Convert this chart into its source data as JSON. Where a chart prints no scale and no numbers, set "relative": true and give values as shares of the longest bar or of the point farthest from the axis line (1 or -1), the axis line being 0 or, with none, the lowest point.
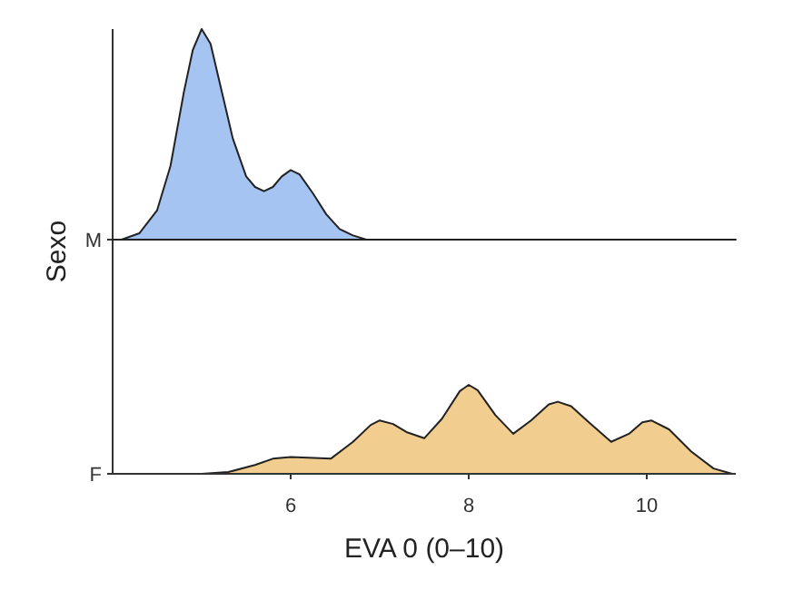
{
  "chart_data": [
    {
      "type": "area",
      "relative": true,
      "ylabel": "Sexo",
      "xlim": [
        4,
        11
      ],
      "tick_labels": false,
      "grid": false,
      "legend": "left",
      "series": [
        {
          "name": "M",
          "color": "#a6c4f2",
          "x": [
            4.1,
            4.3,
            4.5,
            4.65,
            4.8,
            4.9,
            5.0,
            5.1,
            5.2,
            5.35,
            5.5,
            5.6,
            5.7,
            5.8,
            5.9,
            6.0,
            6.1,
            6.25,
            6.4,
            6.55,
            6.7,
            6.85,
            7.2,
            11
          ],
          "values": [
            0,
            0.03,
            0.14,
            0.35,
            0.7,
            0.9,
            1,
            0.93,
            0.75,
            0.48,
            0.3,
            0.25,
            0.23,
            0.25,
            0.3,
            0.33,
            0.31,
            0.22,
            0.12,
            0.05,
            0.02,
            0,
            0,
            0
          ]
        }
      ]
    },
    {
      "type": "area",
      "relative": true,
      "xlabel": "EVA 0 (0–10)",
      "xlim": [
        4,
        11
      ],
      "xticks": [
        6,
        8,
        10
      ],
      "tick_labels": "x",
      "grid": false,
      "legend": "left",
      "series": [
        {
          "name": "F",
          "color": "#f1cd8f",
          "x": [
            4,
            5.0,
            5.3,
            5.6,
            5.8,
            6.0,
            6.2,
            6.45,
            6.7,
            6.9,
            7.0,
            7.15,
            7.3,
            7.5,
            7.7,
            7.9,
            8.0,
            8.1,
            8.3,
            8.5,
            8.7,
            8.9,
            9.0,
            9.15,
            9.35,
            9.6,
            9.8,
            9.95,
            10.05,
            10.25,
            10.5,
            10.75,
            10.96
          ],
          "values": [
            0,
            0,
            0.02,
            0.1,
            0.17,
            0.19,
            0.18,
            0.17,
            0.36,
            0.55,
            0.6,
            0.56,
            0.47,
            0.4,
            0.62,
            0.93,
            1,
            0.94,
            0.66,
            0.45,
            0.6,
            0.78,
            0.81,
            0.76,
            0.58,
            0.36,
            0.45,
            0.58,
            0.6,
            0.5,
            0.25,
            0.06,
            0
          ]
        }
      ]
    }
  ]
}
